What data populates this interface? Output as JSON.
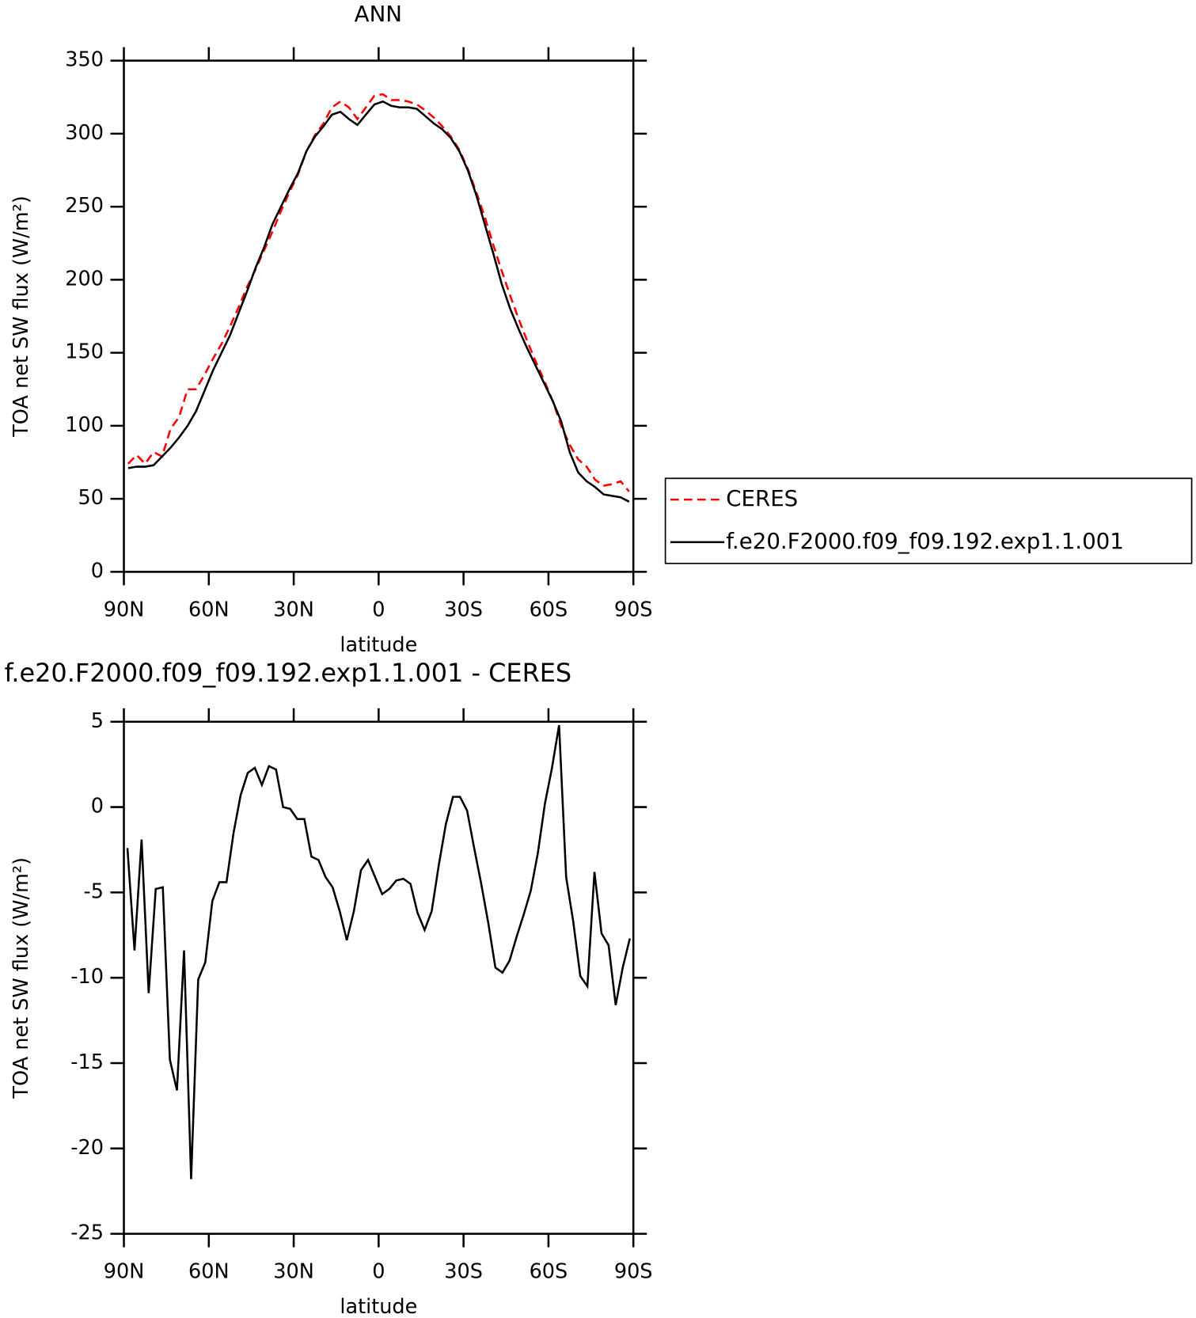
{
  "chart_data": [
    {
      "type": "line",
      "title": "ANN",
      "x_label": "latitude",
      "y_label": "TOA net SW flux (W/m²)",
      "x": [
        88.5,
        85.5,
        82.5,
        79.5,
        76.5,
        73.5,
        70.5,
        67.5,
        64.5,
        61.5,
        58.5,
        55.5,
        52.5,
        49.5,
        46.5,
        43.5,
        40.5,
        37.5,
        34.5,
        31.5,
        28.5,
        25.5,
        22.5,
        19.5,
        16.5,
        13.5,
        10.5,
        7.5,
        4.5,
        1.5,
        -1.5,
        -4.5,
        -7.5,
        -10.5,
        -13.5,
        -16.5,
        -19.5,
        -22.5,
        -25.5,
        -28.5,
        -31.5,
        -34.5,
        -37.5,
        -40.5,
        -43.5,
        -46.5,
        -49.5,
        -52.5,
        -55.5,
        -58.5,
        -61.5,
        -64.5,
        -67.5,
        -70.5,
        -73.5,
        -76.5,
        -79.5,
        -82.5,
        -85.5,
        -88.5
      ],
      "series": [
        {
          "name": "CERES",
          "color": "#ff0000",
          "linestyle": "dashed",
          "values": [
            74,
            80,
            74,
            82,
            79,
            98,
            106,
            125,
            125,
            135,
            146,
            156,
            168,
            181,
            195,
            207,
            220,
            233,
            247,
            260,
            272,
            288,
            299,
            307,
            318,
            322,
            318,
            310,
            318,
            326,
            327,
            323,
            323,
            322,
            320,
            316,
            311,
            305,
            298,
            289,
            276,
            260,
            243,
            224,
            206,
            189,
            173,
            158,
            144,
            131,
            117,
            100,
            87,
            77,
            72,
            63,
            59,
            60,
            62,
            55
          ]
        },
        {
          "name": "f.e20.F2000.f09_f09.192.exp1.1.001",
          "color": "#000000",
          "linestyle": "solid",
          "values": [
            71,
            72,
            72,
            73,
            79,
            85,
            92,
            100,
            110,
            124,
            138,
            150,
            162,
            177,
            192,
            208,
            222,
            238,
            250,
            262,
            273,
            288,
            298,
            305,
            313,
            315,
            310,
            306,
            313,
            320,
            322,
            319,
            318,
            318,
            317,
            312,
            307,
            303,
            297,
            288,
            275,
            258,
            238,
            218,
            197,
            180,
            166,
            153,
            141,
            129,
            117,
            103,
            82,
            68,
            62,
            58,
            53,
            52,
            51,
            48
          ]
        }
      ],
      "xlim": [
        90,
        -90
      ],
      "xticks": [
        {
          "value": 90,
          "label": "90N"
        },
        {
          "value": 60,
          "label": "60N"
        },
        {
          "value": 30,
          "label": "30N"
        },
        0,
        {
          "value": -30,
          "label": "30S"
        },
        {
          "value": -60,
          "label": "60S"
        },
        {
          "value": -90,
          "label": "90S"
        }
      ],
      "ylim": [
        0,
        350
      ],
      "yticks": [
        0,
        50,
        100,
        150,
        200,
        250,
        300,
        350
      ],
      "legend": "outside-right"
    },
    {
      "type": "line",
      "title": "f.e20.F2000.f09_f09.192.exp1.1.001 - CERES",
      "x_label": "latitude",
      "y_label": "TOA net SW flux (W/m²)",
      "x": [
        88.75,
        86.25,
        83.75,
        81.25,
        78.75,
        76.25,
        73.75,
        71.25,
        68.75,
        66.25,
        63.75,
        61.25,
        58.75,
        56.25,
        53.75,
        51.25,
        48.75,
        46.25,
        43.75,
        41.25,
        38.75,
        36.25,
        33.75,
        31.25,
        28.75,
        26.25,
        23.75,
        21.25,
        18.75,
        16.25,
        13.75,
        11.25,
        8.75,
        6.25,
        3.75,
        1.25,
        -1.25,
        -3.75,
        -6.25,
        -8.75,
        -11.25,
        -13.75,
        -16.25,
        -18.75,
        -21.25,
        -23.75,
        -26.25,
        -28.75,
        -31.25,
        -33.75,
        -36.25,
        -38.75,
        -41.25,
        -43.75,
        -46.25,
        -48.75,
        -51.25,
        -53.75,
        -56.25,
        -58.75,
        -61.25,
        -63.75,
        -66.25,
        -68.75,
        -71.25,
        -73.75,
        -76.25,
        -78.75,
        -81.25,
        -83.75,
        -86.25,
        -88.75
      ],
      "series": [
        {
          "color": "#000000",
          "linestyle": "solid",
          "values": [
            -2.4,
            -8.4,
            -1.9,
            -10.9,
            -4.8,
            -4.7,
            -14.8,
            -16.6,
            -8.4,
            -21.8,
            -10.1,
            -9.1,
            -5.5,
            -4.4,
            -4.4,
            -1.5,
            0.7,
            2,
            2.3,
            1.3,
            2.4,
            2.2,
            0,
            -0.1,
            -0.7,
            -0.7,
            -2.9,
            -3.1,
            -4.1,
            -4.7,
            -6.1,
            -7.8,
            -6.1,
            -3.7,
            -3.1,
            -4.1,
            -5.1,
            -4.8,
            -4.3,
            -4.2,
            -4.5,
            -6.2,
            -7.2,
            -6.1,
            -3.4,
            -1,
            0.6,
            0.6,
            -0.2,
            -2.4,
            -4.5,
            -6.8,
            -9.4,
            -9.7,
            -9,
            -7.6,
            -6.3,
            -4.9,
            -2.7,
            0.2,
            2.3,
            4.8,
            -4.1,
            -6.7,
            -9.9,
            -10.5,
            -3.8,
            -7.4,
            -8.1,
            -11.6,
            -9.4,
            -7.7
          ]
        }
      ],
      "xlim": [
        90,
        -90
      ],
      "xticks": [
        {
          "value": 90,
          "label": "90N"
        },
        {
          "value": 60,
          "label": "60N"
        },
        {
          "value": 30,
          "label": "30N"
        },
        0,
        {
          "value": -30,
          "label": "30S"
        },
        {
          "value": -60,
          "label": "60S"
        },
        {
          "value": -90,
          "label": "90S"
        }
      ],
      "ylim": [
        -25,
        5
      ],
      "yticks": [
        -25,
        -20,
        -15,
        -10,
        -5,
        0,
        5
      ]
    }
  ]
}
